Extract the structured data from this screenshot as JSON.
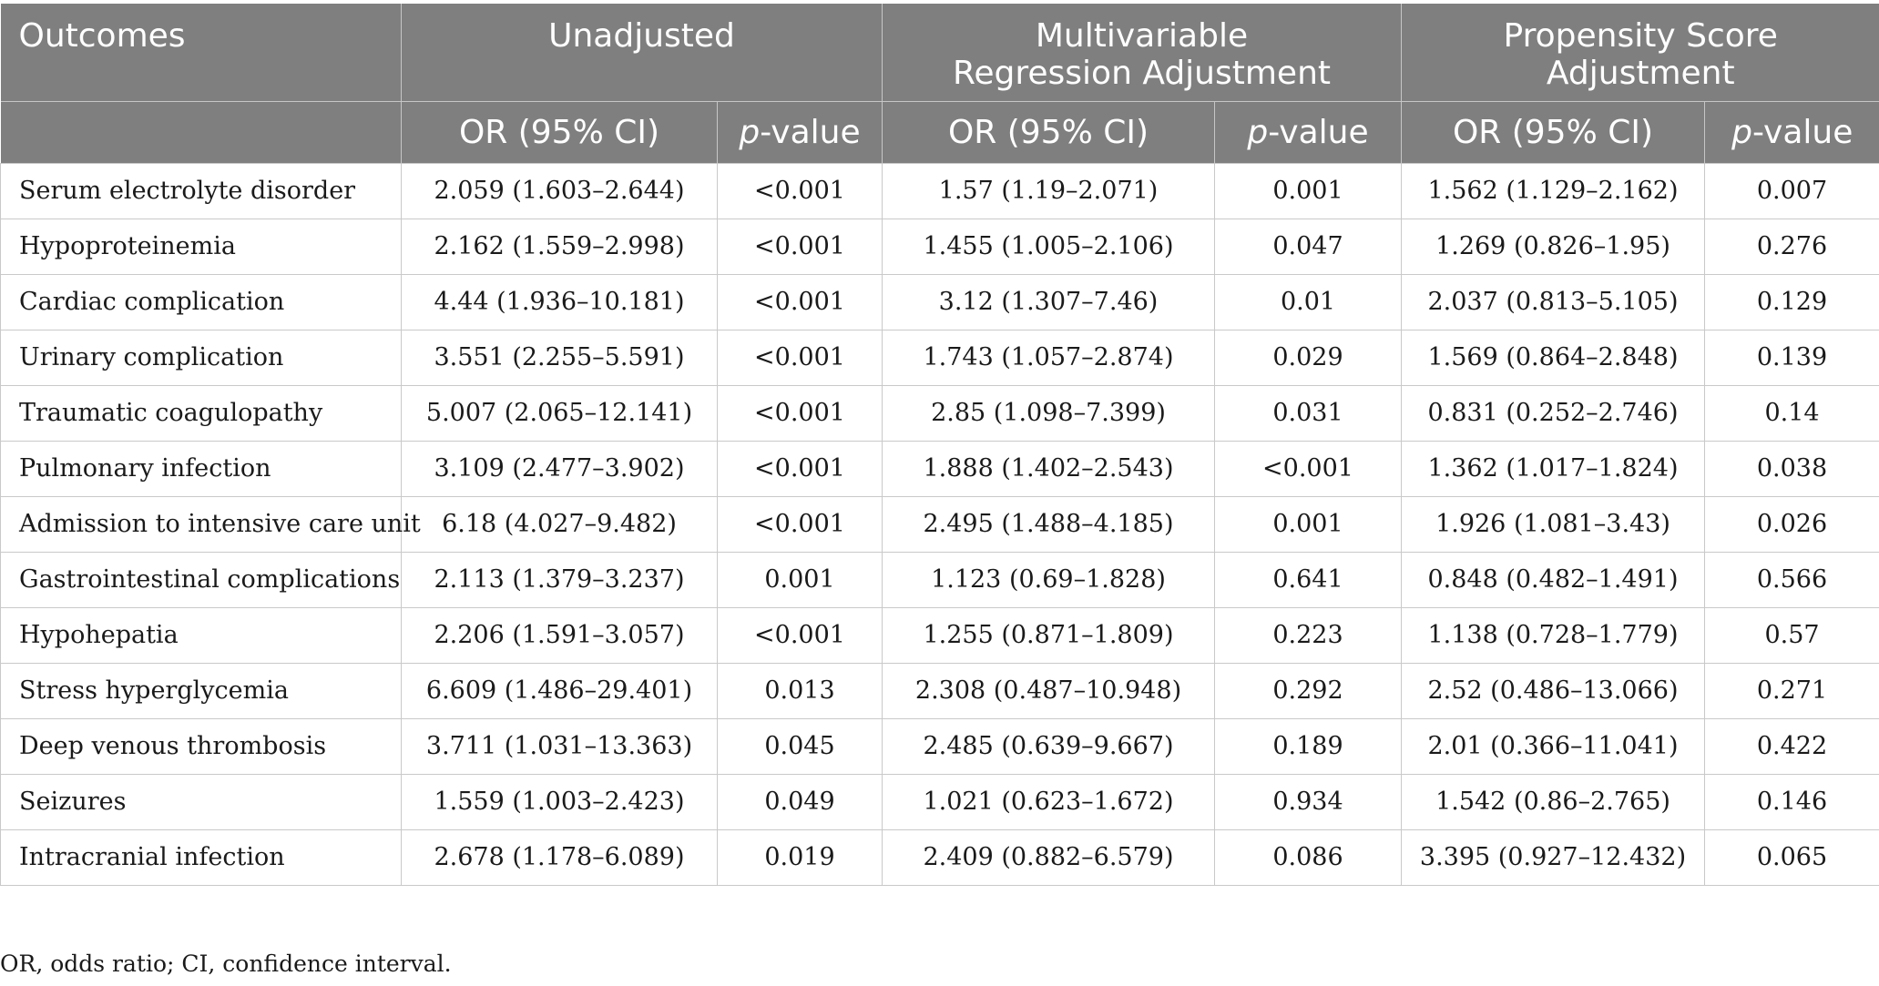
{
  "table": {
    "header": {
      "outcomes": "Outcomes",
      "groups": [
        "Unadjusted",
        "Multivariable Regression Adjustment",
        "Propensity Score Adjustment"
      ],
      "or_label": "OR (95% CI)",
      "p_label_italic": "p",
      "p_label_rest": "-value"
    },
    "rows": [
      [
        "Serum electrolyte disorder",
        "2.059 (1.603–2.644)",
        "<0.001",
        "1.57 (1.19–2.071)",
        "0.001",
        "1.562 (1.129–2.162)",
        "0.007"
      ],
      [
        "Hypoproteinemia",
        "2.162 (1.559–2.998)",
        "<0.001",
        "1.455 (1.005–2.106)",
        "0.047",
        "1.269 (0.826–1.95)",
        "0.276"
      ],
      [
        "Cardiac complication",
        "4.44 (1.936–10.181)",
        "<0.001",
        "3.12 (1.307–7.46)",
        "0.01",
        "2.037 (0.813–5.105)",
        "0.129"
      ],
      [
        "Urinary complication",
        "3.551 (2.255–5.591)",
        "<0.001",
        "1.743 (1.057–2.874)",
        "0.029",
        "1.569 (0.864–2.848)",
        "0.139"
      ],
      [
        "Traumatic coagulopathy",
        "5.007 (2.065–12.141)",
        "<0.001",
        "2.85 (1.098–7.399)",
        "0.031",
        "0.831 (0.252–2.746)",
        "0.14"
      ],
      [
        "Pulmonary infection",
        "3.109 (2.477–3.902)",
        "<0.001",
        "1.888 (1.402–2.543)",
        "<0.001",
        "1.362 (1.017–1.824)",
        "0.038"
      ],
      [
        "Admission to intensive care unit",
        "6.18 (4.027–9.482)",
        "<0.001",
        "2.495 (1.488–4.185)",
        "0.001",
        "1.926 (1.081–3.43)",
        "0.026"
      ],
      [
        "Gastrointestinal complications",
        "2.113 (1.379–3.237)",
        "0.001",
        "1.123 (0.69–1.828)",
        "0.641",
        "0.848 (0.482–1.491)",
        "0.566"
      ],
      [
        "Hypohepatia",
        "2.206 (1.591–3.057)",
        "<0.001",
        "1.255 (0.871–1.809)",
        "0.223",
        "1.138 (0.728–1.779)",
        "0.57"
      ],
      [
        "Stress hyperglycemia",
        "6.609 (1.486–29.401)",
        "0.013",
        "2.308 (0.487–10.948)",
        "0.292",
        "2.52 (0.486–13.066)",
        "0.271"
      ],
      [
        "Deep venous thrombosis",
        "3.711 (1.031–13.363)",
        "0.045",
        "2.485 (0.639–9.667)",
        "0.189",
        "2.01 (0.366–11.041)",
        "0.422"
      ],
      [
        "Seizures",
        "1.559 (1.003–2.423)",
        "0.049",
        "1.021 (0.623–1.672)",
        "0.934",
        "1.542 (0.86–2.765)",
        "0.146"
      ],
      [
        "Intracranial infection",
        "2.678 (1.178–6.089)",
        "0.019",
        "2.409 (0.882–6.579)",
        "0.086",
        "3.395 (0.927–12.432)",
        "0.065"
      ]
    ]
  },
  "footnote": "OR, odds ratio; CI, confidence interval."
}
